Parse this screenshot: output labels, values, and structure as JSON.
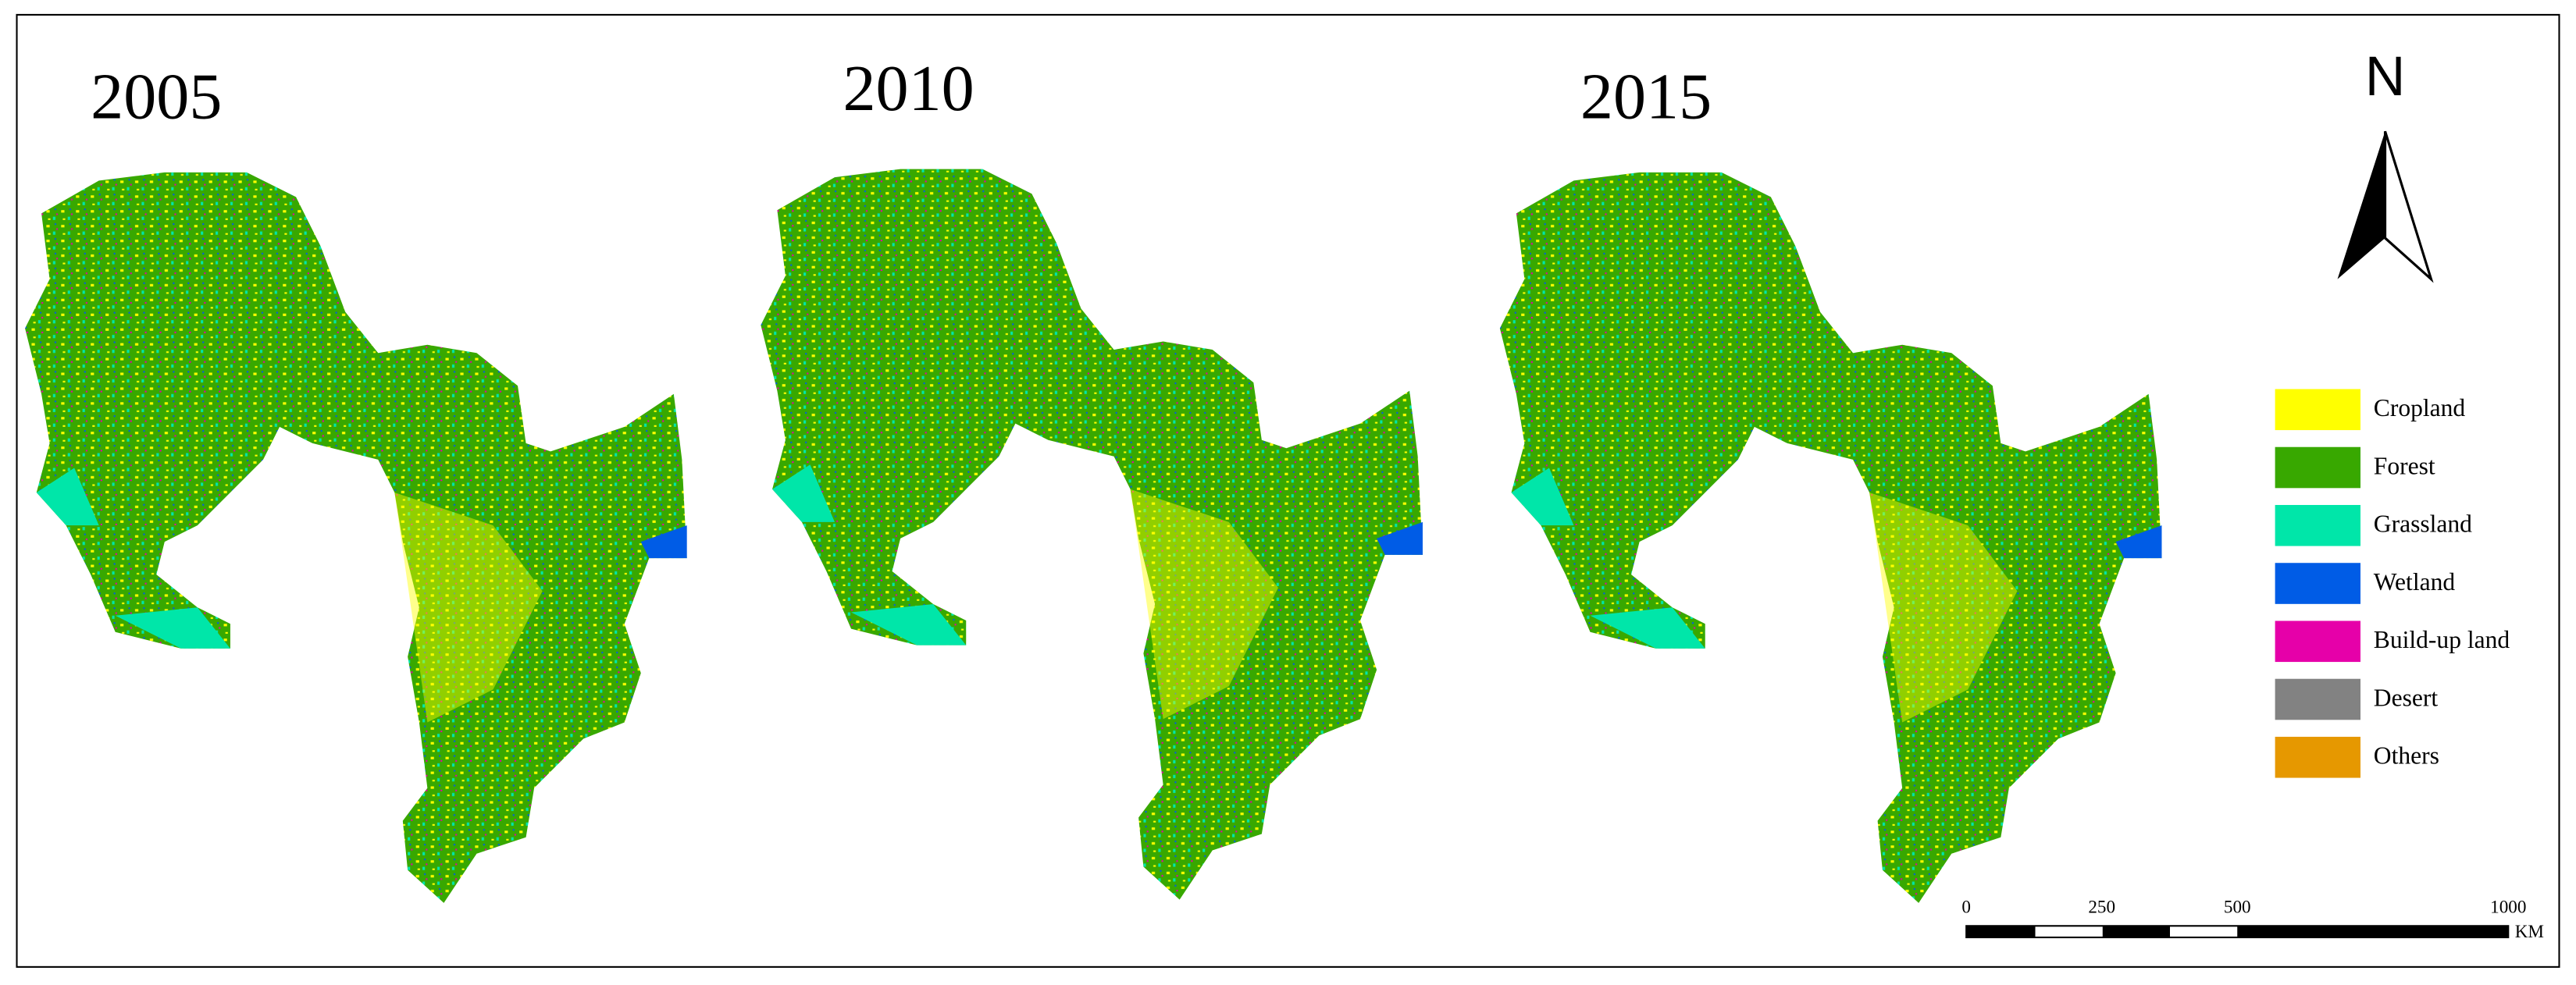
{
  "panels": [
    {
      "year": "2005"
    },
    {
      "year": "2010"
    },
    {
      "year": "2015"
    }
  ],
  "north_arrow": {
    "label": "N"
  },
  "legend": {
    "items": [
      {
        "label": "Cropland",
        "color": "#ffff00"
      },
      {
        "label": "Forest",
        "color": "#38a800"
      },
      {
        "label": "Grassland",
        "color": "#00e6a9"
      },
      {
        "label": "Wetland",
        "color": "#005ce6"
      },
      {
        "label": "Build-up land",
        "color": "#e600a9"
      },
      {
        "label": "Desert",
        "color": "#828282"
      },
      {
        "label": "Others",
        "color": "#e69800"
      }
    ]
  },
  "scale_bar": {
    "ticks": [
      0,
      250,
      500,
      1000
    ],
    "unit": "KM"
  }
}
